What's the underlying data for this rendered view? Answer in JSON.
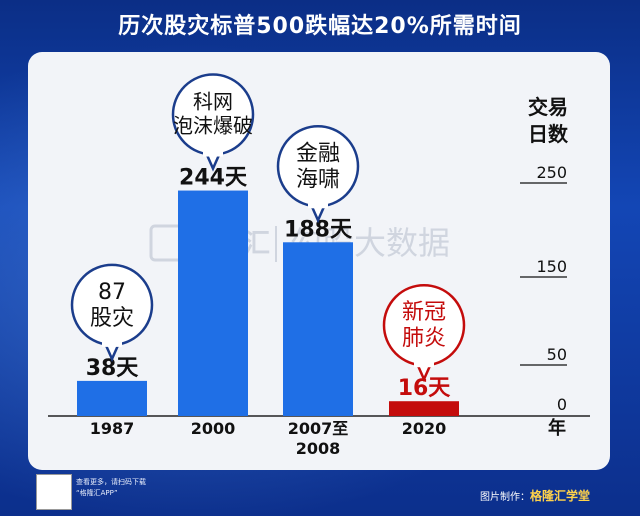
{
  "title": "历次股灾标普500跌幅达20%所需时间",
  "watermark": {
    "logo": "格隆汇",
    "text": "勾股大数据"
  },
  "footer": {
    "line1": "查看更多，请扫码下载",
    "line2": "“格隆汇APP”",
    "credit_label": "图片制作：",
    "credit_brand": "格隆汇学堂"
  },
  "colors": {
    "bar": "#1f6fe6",
    "bar_highlight": "#c40c0c",
    "bubble_border": "#1b3d8c",
    "bubble_highlight_border": "#c40c0c"
  },
  "chart_data": {
    "type": "bar",
    "categories": [
      "1987",
      "2000",
      "2007至2008",
      "2020"
    ],
    "values": [
      38,
      244,
      188,
      16
    ],
    "value_labels": [
      "38天",
      "244天",
      "188天",
      "16天"
    ],
    "annotations": [
      "87股灾",
      "科网泡沫爆破",
      "金融海啸",
      "新冠肺炎"
    ],
    "ylabel": "交易日数",
    "xlabel": "年",
    "yticks": [
      0,
      50,
      150,
      250
    ],
    "ylim": [
      0,
      250
    ],
    "grid": false
  }
}
